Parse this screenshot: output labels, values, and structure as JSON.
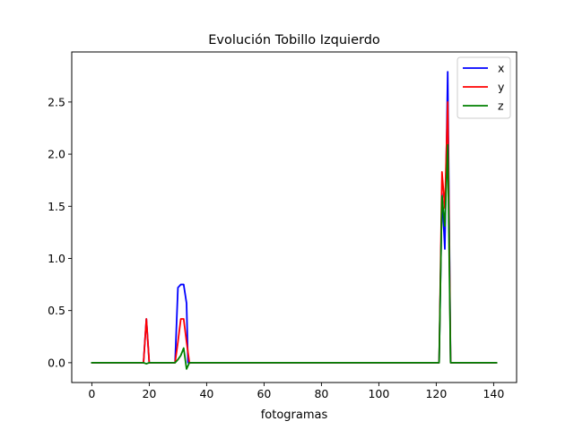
{
  "chart_data": {
    "type": "line",
    "title": "Evolución Tobillo Izquierdo",
    "xlabel": "fotogramas",
    "ylabel": "",
    "xlim": [
      -7,
      148
    ],
    "ylim": [
      -0.19,
      2.98
    ],
    "xticks": [
      0,
      20,
      40,
      60,
      80,
      100,
      120,
      140
    ],
    "xtick_labels": [
      "0",
      "20",
      "40",
      "60",
      "80",
      "100",
      "120",
      "140"
    ],
    "yticks": [
      0.0,
      0.5,
      1.0,
      1.5,
      2.0,
      2.5
    ],
    "ytick_labels": [
      "0.0",
      "0.5",
      "1.0",
      "1.5",
      "2.0",
      "2.5"
    ],
    "grid": false,
    "legend_position": "top-right",
    "series": [
      {
        "name": "x",
        "color": "#0000ff",
        "points": [
          [
            0,
            0
          ],
          [
            18,
            0
          ],
          [
            19,
            0.42
          ],
          [
            20,
            0
          ],
          [
            29,
            0
          ],
          [
            30,
            0.72
          ],
          [
            31,
            0.75
          ],
          [
            32,
            0.75
          ],
          [
            33,
            0.57
          ],
          [
            33.5,
            0
          ],
          [
            121,
            0
          ],
          [
            122,
            1.62
          ],
          [
            123,
            1.09
          ],
          [
            124,
            2.79
          ],
          [
            125,
            0
          ],
          [
            141,
            0
          ]
        ]
      },
      {
        "name": "y",
        "color": "#ff0000",
        "points": [
          [
            0,
            0
          ],
          [
            18,
            0
          ],
          [
            19,
            0.42
          ],
          [
            20,
            0
          ],
          [
            29,
            0
          ],
          [
            30,
            0.2
          ],
          [
            31,
            0.42
          ],
          [
            32,
            0.42
          ],
          [
            33,
            0.2
          ],
          [
            34,
            0
          ],
          [
            121,
            0
          ],
          [
            122,
            1.83
          ],
          [
            123,
            1.48
          ],
          [
            124,
            2.5
          ],
          [
            125,
            0
          ],
          [
            141,
            0
          ]
        ]
      },
      {
        "name": "z",
        "color": "#008000",
        "points": [
          [
            0,
            0
          ],
          [
            18,
            0
          ],
          [
            19,
            -0.01
          ],
          [
            20,
            0
          ],
          [
            29,
            0
          ],
          [
            30,
            0.03
          ],
          [
            31,
            0.07
          ],
          [
            32,
            0.14
          ],
          [
            33,
            -0.06
          ],
          [
            34,
            0
          ],
          [
            121,
            0
          ],
          [
            122,
            1.6
          ],
          [
            123,
            1.31
          ],
          [
            124,
            2.09
          ],
          [
            125,
            0
          ],
          [
            141,
            0
          ]
        ]
      }
    ]
  }
}
